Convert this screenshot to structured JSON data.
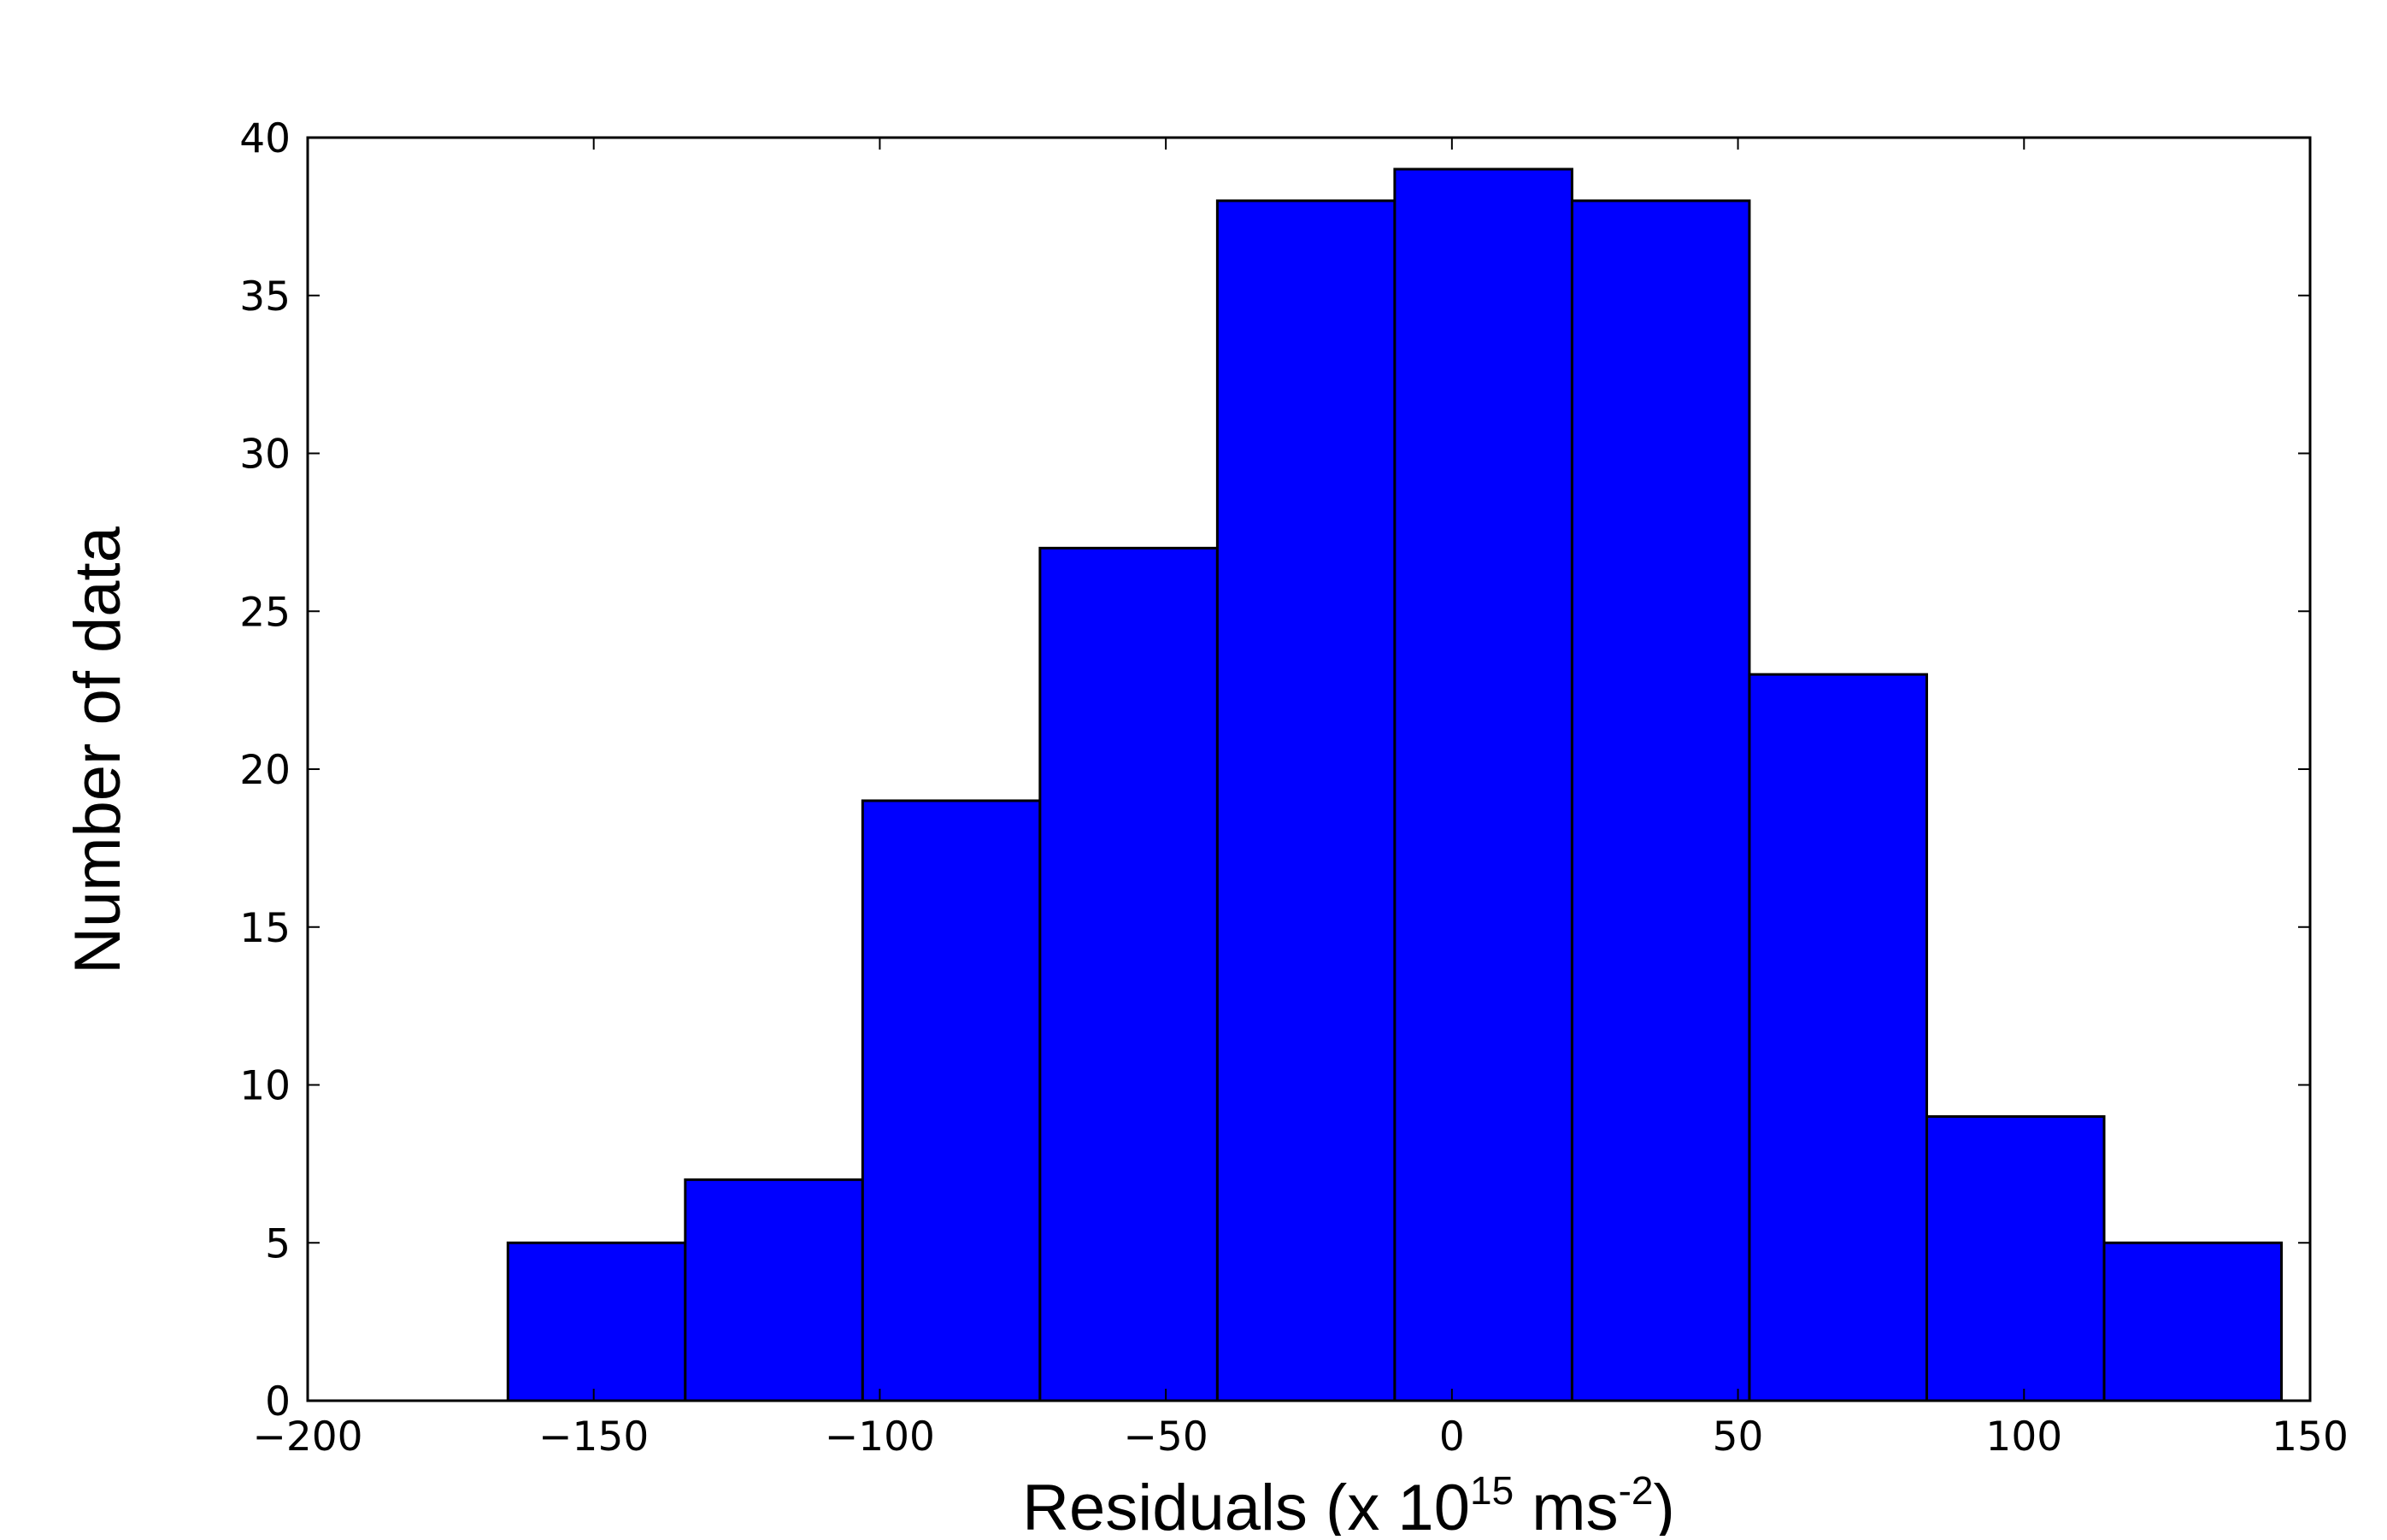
{
  "chart_data": {
    "type": "bar",
    "subtype": "histogram",
    "title": "",
    "xlabel": {
      "prefix": "Residuals (x 10",
      "sup1": "15",
      "middle": " ms",
      "sup2": "-2",
      "suffix": ")"
    },
    "ylabel": "Number of data",
    "xlim": [
      -200,
      150
    ],
    "ylim": [
      0,
      40
    ],
    "xticks": [
      -200,
      -150,
      -100,
      -50,
      0,
      50,
      100,
      150
    ],
    "xtick_labels": [
      "−200",
      "−150",
      "−100",
      "−50",
      "0",
      "50",
      "100",
      "150"
    ],
    "yticks": [
      0,
      5,
      10,
      15,
      20,
      25,
      30,
      35,
      40
    ],
    "ytick_labels": [
      "0",
      "5",
      "10",
      "15",
      "20",
      "25",
      "30",
      "35",
      "40"
    ],
    "bin_edges": [
      -165,
      -134,
      -103,
      -72,
      -41,
      -10,
      21,
      52,
      83,
      114,
      145
    ],
    "values": [
      5,
      7,
      19,
      27,
      38,
      39,
      38,
      23,
      9,
      5
    ],
    "bar_color": "#0000ff",
    "edge_color": "#000000",
    "grid": false,
    "legend": "none"
  }
}
